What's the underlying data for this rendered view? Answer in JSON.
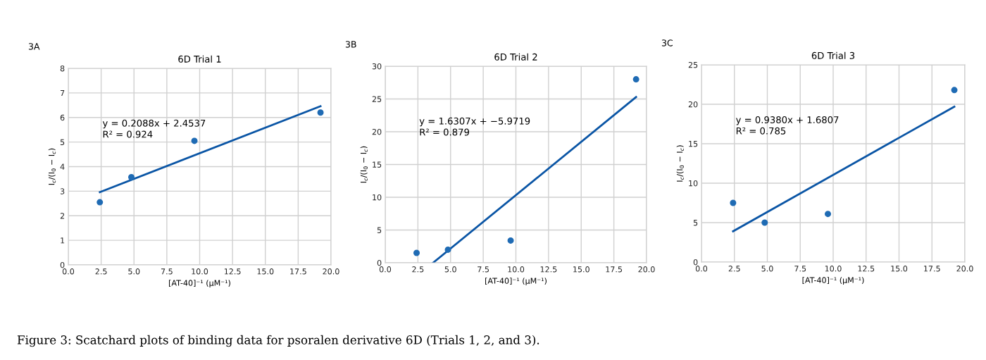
{
  "chart_data": [
    {
      "type": "scatter",
      "title": "6D Trial 1",
      "xlabel": "[AT-40]⁻¹ (μM⁻¹)",
      "ylabel": "I$_{c}$/(I$_{0}$ − I$_{c}$)",
      "annotations": [
        "3A",
        "y = 0.2088x + 2.4537\nR² = 0.924",
        "Figure 3: Scatchard plots of binding data for psoralen derivative 6D (Trials 1, 2, and 3)."
      ],
      "series": [
        {
          "color": "#1f6bb4",
          "marker": "circle",
          "x": [
            2.4,
            4.8,
            9.6,
            19.2
          ],
          "values": [
            2.55,
            3.57,
            5.05,
            6.2
          ]
        },
        {
          "type": "line",
          "marker": "none",
          "color": "#0a55a5",
          "x": [
            2.4,
            19.2
          ],
          "values": [
            2.96,
            6.46
          ]
        }
      ],
      "xlim": [
        0,
        20
      ],
      "xticks": [
        {
          "value": 0,
          "label": "0.0"
        },
        {
          "value": 2.5,
          "label": "2.5"
        },
        {
          "value": 5,
          "label": "5.0"
        },
        {
          "value": 7.5,
          "label": "7.5"
        },
        {
          "value": 10,
          "label": "10.0"
        },
        {
          "value": 12.5,
          "label": "12.5"
        },
        {
          "value": 15,
          "label": "15.0"
        },
        {
          "value": 17.5,
          "label": "17.5"
        },
        {
          "value": 20,
          "label": "20.0"
        }
      ],
      "ylim": [
        0,
        8
      ],
      "yticks": [
        0,
        1,
        2,
        3,
        4,
        5,
        6,
        7,
        8
      ],
      "grid": true
    },
    {
      "type": "scatter",
      "title": "6D Trial 2",
      "xlabel": "[AT-40]⁻¹ (μM⁻¹)",
      "ylabel": "I$_{c}$/(I$_{0}$ − I$_{c}$)",
      "annotations": [
        "3B",
        "y = 1.6307x + −5.9719\nR² = 0.879"
      ],
      "series": [
        {
          "color": "#1f6bb4",
          "marker": "circle",
          "x": [
            2.4,
            4.8,
            9.6,
            19.2
          ],
          "values": [
            1.5,
            2.0,
            3.4,
            28.0
          ]
        },
        {
          "type": "line",
          "marker": "none",
          "color": "#0a55a5",
          "x": [
            3.66,
            19.2
          ],
          "values": [
            0,
            25.3
          ]
        }
      ],
      "xlim": [
        0,
        20
      ],
      "xticks": [
        {
          "value": 0,
          "label": "0.0"
        },
        {
          "value": 2.5,
          "label": "2.5"
        },
        {
          "value": 5,
          "label": "5.0"
        },
        {
          "value": 7.5,
          "label": "7.5"
        },
        {
          "value": 10,
          "label": "10.0"
        },
        {
          "value": 12.5,
          "label": "12.5"
        },
        {
          "value": 15,
          "label": "15.0"
        },
        {
          "value": 17.5,
          "label": "17.5"
        },
        {
          "value": 20,
          "label": "20.0"
        }
      ],
      "ylim": [
        0,
        30
      ],
      "yticks": [
        0,
        5,
        10,
        15,
        20,
        25,
        30
      ],
      "grid": true
    },
    {
      "type": "scatter",
      "title": "6D Trial 3",
      "xlabel": "[AT-40]⁻¹ (μM⁻¹)",
      "ylabel": "I$_{c}$/(I$_{0}$ − I$_{c}$)",
      "annotations": [
        "3C",
        "y = 0.9380x + 1.6807\nR² = 0.785"
      ],
      "series": [
        {
          "color": "#1f6bb4",
          "marker": "circle",
          "x": [
            2.4,
            4.8,
            9.6,
            19.2
          ],
          "values": [
            7.5,
            5.0,
            6.1,
            21.8
          ]
        },
        {
          "type": "line",
          "marker": "none",
          "color": "#0a55a5",
          "x": [
            2.4,
            19.2
          ],
          "values": [
            3.9,
            19.7
          ]
        }
      ],
      "xlim": [
        0,
        20
      ],
      "xticks": [
        {
          "value": 0,
          "label": "0.0"
        },
        {
          "value": 2.5,
          "label": "2.5"
        },
        {
          "value": 5,
          "label": "5.0"
        },
        {
          "value": 7.5,
          "label": "7.5"
        },
        {
          "value": 10,
          "label": "10.0"
        },
        {
          "value": 12.5,
          "label": "12.5"
        },
        {
          "value": 15,
          "label": "15.0"
        },
        {
          "value": 17.5,
          "label": "17.5"
        },
        {
          "value": 20,
          "label": "20.0"
        }
      ],
      "ylim": [
        0,
        25
      ],
      "yticks": [
        0,
        5,
        10,
        15,
        20,
        25
      ],
      "grid": true
    }
  ]
}
